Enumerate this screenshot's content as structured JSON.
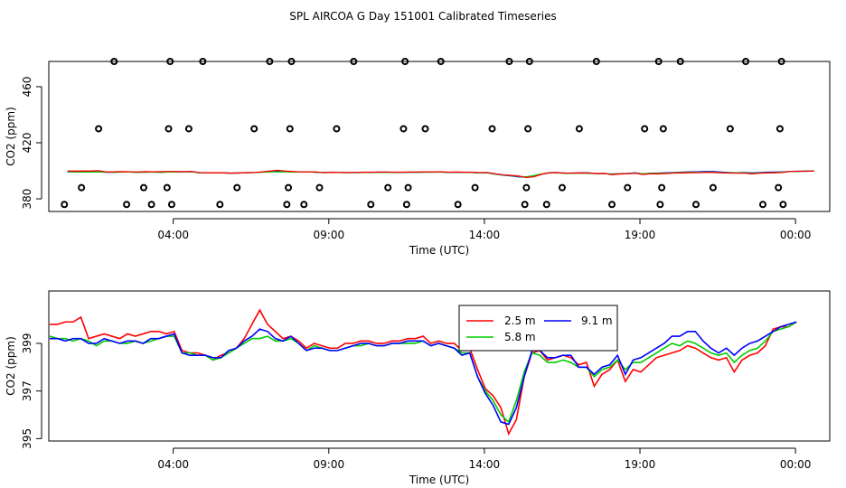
{
  "title": "SPL AIRCOA G  Day 151001  Calibrated Timeseries",
  "chart_data": [
    {
      "type": "scatter",
      "xlabel": "Time (UTC)",
      "ylabel": "CO2 (ppm)",
      "xlim": [
        0,
        25.1
      ],
      "ylim": [
        371,
        478
      ],
      "x_ticks": [
        4,
        9,
        14,
        19,
        24
      ],
      "x_tick_labels": [
        "04:00",
        "09:00",
        "14:00",
        "19:00",
        "00:00"
      ],
      "y_ticks": [
        380,
        420,
        460
      ],
      "y_tick_labels": [
        "380",
        "420",
        "460"
      ],
      "marker_points": {
        "x": [
          0.5,
          1.05,
          1.6,
          2.1,
          2.5,
          3.05,
          3.3,
          3.8,
          3.85,
          3.9,
          3.95,
          4.5,
          4.95,
          5.5,
          6.05,
          6.6,
          7.1,
          7.65,
          7.7,
          7.75,
          7.8,
          8.2,
          8.7,
          9.25,
          9.8,
          10.35,
          10.9,
          11.4,
          11.45,
          11.5,
          11.55,
          12.1,
          12.6,
          13.15,
          13.7,
          14.25,
          14.8,
          15.3,
          15.35,
          15.4,
          15.45,
          16.0,
          16.5,
          17.05,
          17.6,
          18.1,
          18.6,
          19.15,
          19.6,
          19.65,
          19.7,
          19.75,
          20.3,
          20.8,
          21.35,
          21.9,
          22.4,
          22.95,
          23.45,
          23.5,
          23.55,
          23.6
        ],
        "y": [
          376,
          388,
          430,
          478,
          376,
          388,
          376,
          388,
          430,
          478,
          376,
          430,
          478,
          376,
          388,
          430,
          478,
          376,
          388,
          430,
          478,
          376,
          388,
          430,
          478,
          376,
          388,
          430,
          478,
          376,
          388,
          430,
          478,
          376,
          388,
          430,
          478,
          376,
          388,
          430,
          478,
          376,
          388,
          430,
          478,
          376,
          388,
          430,
          478,
          376,
          388,
          430,
          478,
          376,
          388,
          430,
          478,
          376,
          388,
          430,
          478,
          376
        ]
      },
      "series": [
        {
          "label": "2.5 m",
          "color": "#ff0000"
        },
        {
          "label": "5.8 m",
          "color": "#00cc00"
        },
        {
          "label": "9.1 m",
          "color": "#0000ff"
        }
      ]
    },
    {
      "type": "line",
      "xlabel": "Time (UTC)",
      "ylabel": "CO2 (ppm)",
      "xlim": [
        0,
        25.1
      ],
      "ylim": [
        394.9,
        401.2
      ],
      "x_ticks": [
        4,
        9,
        14,
        19,
        24
      ],
      "x_tick_labels": [
        "04:00",
        "09:00",
        "14:00",
        "19:00",
        "00:00"
      ],
      "y_ticks": [
        395,
        397,
        399
      ],
      "y_tick_labels": [
        "395",
        "397",
        "399"
      ],
      "x": [
        0.0,
        0.25,
        0.5,
        0.75,
        1.0,
        1.25,
        1.5,
        1.75,
        2.0,
        2.25,
        2.5,
        2.75,
        3.0,
        3.25,
        3.5,
        3.75,
        4.0,
        4.25,
        4.5,
        4.75,
        5.0,
        5.25,
        5.5,
        5.75,
        6.0,
        6.25,
        6.5,
        6.75,
        7.0,
        7.25,
        7.5,
        7.75,
        8.0,
        8.25,
        8.5,
        8.75,
        9.0,
        9.25,
        9.5,
        9.75,
        10.0,
        10.25,
        10.5,
        10.75,
        11.0,
        11.25,
        11.5,
        11.75,
        12.0,
        12.25,
        12.5,
        12.75,
        13.0,
        13.25,
        13.5,
        13.75,
        14.0,
        14.25,
        14.5,
        14.75,
        15.0,
        15.25,
        15.5,
        15.75,
        16.0,
        16.25,
        16.5,
        16.75,
        17.0,
        17.25,
        17.5,
        17.75,
        18.0,
        18.25,
        18.5,
        18.75,
        19.0,
        19.25,
        19.5,
        19.75,
        20.0,
        20.25,
        20.5,
        20.75,
        21.0,
        21.25,
        21.5,
        21.75,
        22.0,
        22.25,
        22.5,
        22.75,
        23.0,
        23.25,
        23.5,
        23.75,
        24.0
      ],
      "series_values": [
        {
          "label": "2.5 m",
          "color": "#ff0000",
          "values": [
            399.8,
            399.8,
            399.9,
            399.9,
            400.1,
            399.2,
            399.3,
            399.4,
            399.3,
            399.2,
            399.4,
            399.3,
            399.4,
            399.5,
            399.5,
            399.4,
            399.5,
            398.7,
            398.6,
            398.6,
            398.5,
            398.3,
            398.5,
            398.6,
            398.8,
            399.2,
            399.8,
            400.4,
            399.8,
            399.5,
            399.2,
            399.3,
            399.1,
            398.8,
            399.0,
            398.9,
            398.8,
            398.8,
            399.0,
            399.0,
            399.1,
            399.1,
            399.0,
            399.0,
            399.1,
            399.1,
            399.2,
            399.2,
            399.3,
            399.0,
            399.1,
            399.0,
            399.0,
            398.7,
            398.8,
            397.9,
            397.1,
            396.8,
            396.3,
            395.2,
            395.8,
            397.6,
            398.6,
            398.7,
            398.3,
            398.4,
            398.5,
            398.4,
            398.1,
            398.2,
            397.2,
            397.7,
            397.9,
            398.3,
            397.4,
            397.9,
            397.8,
            398.1,
            398.4,
            398.5,
            398.6,
            398.7,
            398.9,
            398.8,
            398.6,
            398.4,
            398.3,
            398.4,
            397.8,
            398.3,
            398.5,
            398.6,
            398.9,
            399.6,
            399.7,
            399.7,
            399.9
          ]
        },
        {
          "label": "5.8 m",
          "color": "#00cc00",
          "values": [
            399.3,
            399.2,
            399.2,
            399.1,
            399.2,
            399.1,
            398.9,
            399.1,
            399.1,
            399.0,
            399.0,
            399.1,
            399.0,
            399.1,
            399.2,
            399.3,
            399.3,
            398.6,
            398.6,
            398.5,
            398.5,
            398.3,
            398.4,
            398.6,
            398.8,
            399.0,
            399.2,
            399.2,
            399.3,
            399.1,
            399.1,
            399.2,
            399.0,
            398.7,
            398.9,
            398.8,
            398.7,
            398.7,
            398.8,
            398.9,
            398.9,
            399.0,
            398.9,
            398.9,
            399.0,
            399.0,
            399.0,
            399.0,
            399.1,
            398.9,
            399.0,
            398.9,
            398.8,
            398.6,
            398.6,
            397.6,
            397.0,
            396.6,
            396.0,
            395.7,
            396.6,
            397.8,
            398.6,
            398.5,
            398.2,
            398.2,
            398.3,
            398.2,
            398.0,
            398.0,
            397.6,
            397.9,
            398.0,
            398.3,
            397.9,
            398.2,
            398.2,
            398.4,
            398.6,
            398.8,
            399.0,
            398.9,
            399.1,
            399.0,
            398.8,
            398.6,
            398.5,
            398.6,
            398.2,
            398.5,
            398.7,
            398.8,
            399.1,
            399.5,
            399.6,
            399.7,
            399.9
          ]
        },
        {
          "label": "9.1 m",
          "color": "#0000ff",
          "values": [
            399.2,
            399.2,
            399.1,
            399.2,
            399.2,
            399.0,
            399.0,
            399.2,
            399.1,
            399.0,
            399.1,
            399.1,
            399.0,
            399.2,
            399.2,
            399.3,
            399.4,
            398.6,
            398.5,
            398.5,
            398.5,
            398.4,
            398.4,
            398.7,
            398.8,
            399.1,
            399.3,
            399.6,
            399.5,
            399.2,
            399.1,
            399.3,
            399.0,
            398.7,
            398.8,
            398.8,
            398.7,
            398.7,
            398.8,
            398.9,
            399.0,
            399.0,
            398.9,
            398.9,
            399.0,
            399.0,
            399.1,
            399.1,
            399.1,
            398.9,
            399.0,
            398.9,
            398.8,
            398.5,
            398.6,
            397.6,
            396.9,
            396.4,
            395.7,
            395.6,
            396.3,
            397.6,
            398.7,
            398.7,
            398.4,
            398.4,
            398.5,
            398.5,
            398.0,
            398.0,
            397.7,
            398.0,
            398.1,
            398.5,
            397.7,
            398.3,
            398.4,
            398.6,
            398.8,
            399.0,
            399.3,
            399.3,
            399.5,
            399.5,
            399.1,
            398.8,
            398.6,
            398.8,
            398.5,
            398.8,
            399.0,
            399.1,
            399.3,
            399.5,
            399.7,
            399.8,
            399.9
          ]
        }
      ],
      "legend": [
        {
          "label": "2.5 m",
          "color": "#ff0000"
        },
        {
          "label": "9.1 m",
          "color": "#0000ff"
        },
        {
          "label": "5.8 m",
          "color": "#00cc00"
        }
      ]
    }
  ]
}
